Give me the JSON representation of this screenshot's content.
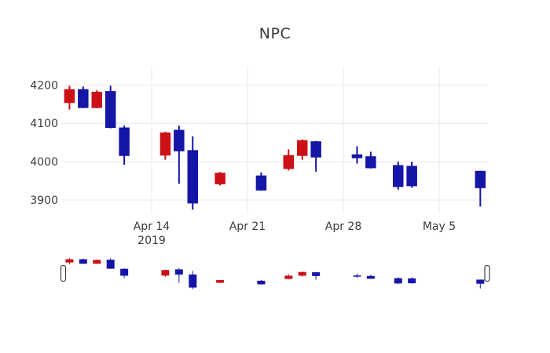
{
  "title": "NPC",
  "colors": {
    "increasing": "#1515a8",
    "decreasing": "#cc1018",
    "grid": "#e9e9e9",
    "tick_text": "#3b3b3b",
    "handle_fill": "#ffffff",
    "handle_border": "#444444",
    "background": "#ffffff"
  },
  "chart_data": {
    "type": "candlestick",
    "title": "NPC",
    "xlabel": "",
    "ylabel": "",
    "grid": true,
    "legend": false,
    "rangeslider": true,
    "ylim": [
      3865,
      4248
    ],
    "x_start": "2019-04-08",
    "dates": [
      "2019-04-08",
      "2019-04-09",
      "2019-04-10",
      "2019-04-11",
      "2019-04-12",
      "2019-04-15",
      "2019-04-16",
      "2019-04-17",
      "2019-04-19",
      "2019-04-22",
      "2019-04-24",
      "2019-04-25",
      "2019-04-26",
      "2019-04-29",
      "2019-04-30",
      "2019-05-02",
      "2019-05-03",
      "2019-05-08"
    ],
    "open": [
      4188,
      4141,
      4181,
      4089,
      4016,
      4075,
      4028,
      3892,
      3970,
      3926,
      4016,
      4055,
      4012,
      4010,
      3984,
      3935,
      3937,
      3932
    ],
    "high": [
      4198,
      4196,
      4186,
      4198,
      4094,
      4078,
      4094,
      4066,
      3973,
      3972,
      4032,
      4058,
      4054,
      4040,
      4026,
      4000,
      4000,
      3976
    ],
    "low": [
      4136,
      4139,
      4139,
      4087,
      3992,
      4005,
      3942,
      3875,
      3938,
      3924,
      3977,
      4005,
      3974,
      3995,
      3982,
      3927,
      3932,
      3883
    ],
    "close": [
      4154,
      4188,
      4141,
      4183,
      4088,
      4017,
      4082,
      4029,
      3942,
      3963,
      3982,
      4016,
      4052,
      4018,
      4013,
      3990,
      3988,
      3975
    ],
    "y_ticks": [
      {
        "value": 3900,
        "label": "3900"
      },
      {
        "value": 4000,
        "label": "4000"
      },
      {
        "value": 4100,
        "label": "4100"
      },
      {
        "value": 4200,
        "label": "4200"
      }
    ],
    "x_ticks": [
      {
        "date": "2019-04-14",
        "label": "Apr 14",
        "sub": "2019"
      },
      {
        "date": "2019-04-21",
        "label": "Apr 21",
        "sub": ""
      },
      {
        "date": "2019-04-28",
        "label": "Apr 28",
        "sub": ""
      },
      {
        "date": "2019-05-05",
        "label": "May 5",
        "sub": ""
      }
    ]
  }
}
